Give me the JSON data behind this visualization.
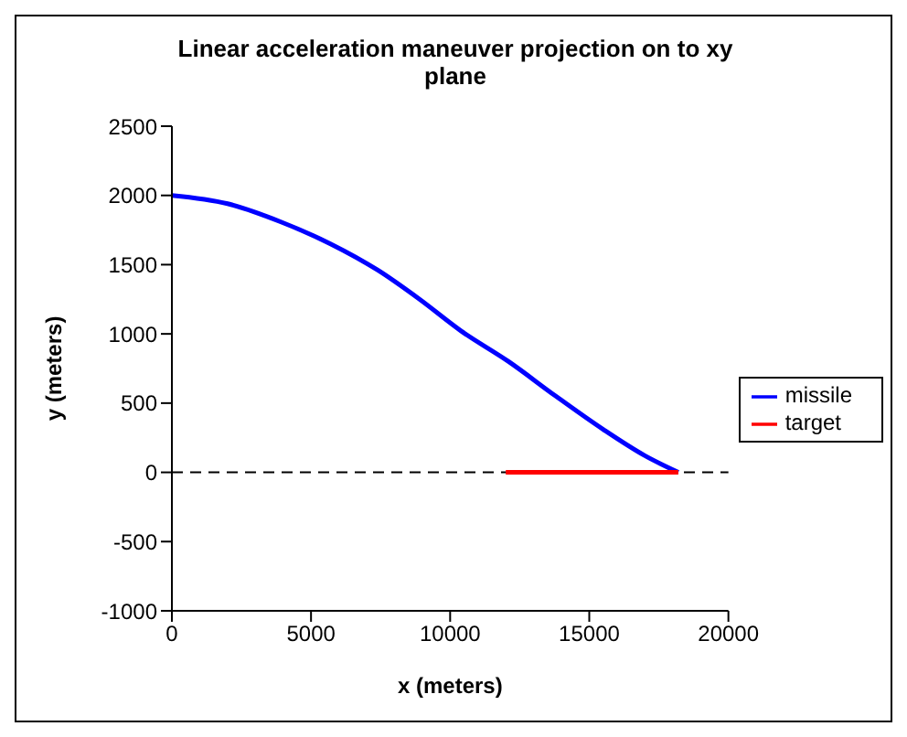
{
  "chart_data": {
    "type": "line",
    "title": "Linear acceleration maneuver projection on to xy plane",
    "xlabel": "x (meters)",
    "ylabel": "y (meters)",
    "xlim": [
      0,
      20000
    ],
    "xticks": [
      0,
      5000,
      10000,
      15000,
      20000
    ],
    "ylim": [
      -1000,
      2500
    ],
    "yticks": [
      -1000,
      -500,
      0,
      500,
      1000,
      1500,
      2000,
      2500
    ],
    "series": [
      {
        "name": "missile",
        "color": "#0000ff",
        "x": [
          0,
          2000,
          3900,
          5700,
          7400,
          8900,
          10400,
          12100,
          13800,
          15500,
          17000,
          18200
        ],
        "values": [
          2000,
          1940,
          1810,
          1650,
          1460,
          1250,
          1020,
          800,
          550,
          310,
          120,
          0
        ]
      },
      {
        "name": "target",
        "color": "#ff0000",
        "x": [
          12000,
          18200
        ],
        "values": [
          0,
          0
        ]
      }
    ],
    "ref_lines": [
      {
        "axis": "y",
        "value": 0,
        "color": "#000000",
        "line_style": "dashed"
      }
    ],
    "grid": false,
    "legend": "right",
    "marker": "none",
    "line_style": "solid"
  }
}
